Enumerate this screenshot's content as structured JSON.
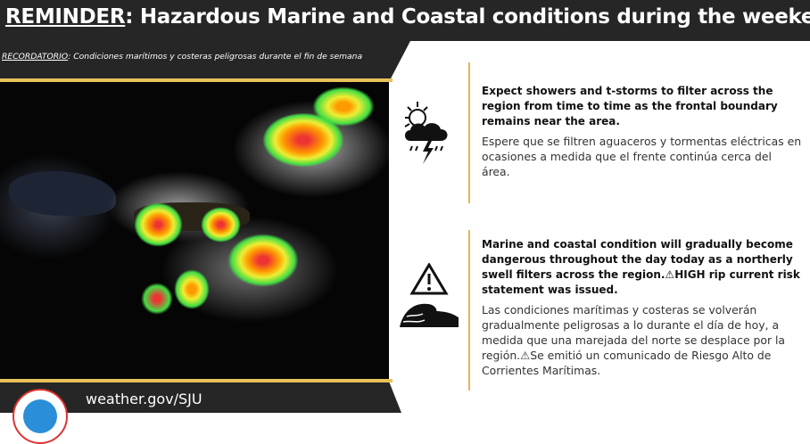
{
  "header": {
    "title_prefix": "REMINDER",
    "title_rest": ": Hazardous Marine and Coastal conditions during the weekend",
    "subtitle_prefix": "RECORDATORIO",
    "subtitle_rest": ": Condiciones marítimos y costeras peligrosas durante el fin de semana"
  },
  "blocks": [
    {
      "icon": "thunderstorm-icon",
      "english": "Expect showers and t-storms to filter across the region from time to time as  the frontal boundary remains near the area.",
      "spanish": "Espere que se filtren aguaceros y tormentas eléctricas  en ocasiones a medida que el frente continúa cerca del área."
    },
    {
      "icon": "warning-wave-icon",
      "english": "Marine and coastal condition will gradually become dangerous throughout the day today as a northerly swell filters across the region.⚠HIGH rip current risk statement was issued.",
      "spanish": "Las condiciones marítimas y costeras se volverán gradualmente peligrosas a lo durante el día de hoy, a medida que una marejada del norte se desplace por la región.⚠Se emitió un comunicado de Riesgo Alto de Corrientes Marítimas."
    }
  ],
  "footer": {
    "url": "weather.gov/SJU",
    "logo": "National Weather Service logo"
  },
  "colors": {
    "dark": "#262626",
    "gold": "#e8c15a",
    "accent_line": "#e8b45a"
  }
}
